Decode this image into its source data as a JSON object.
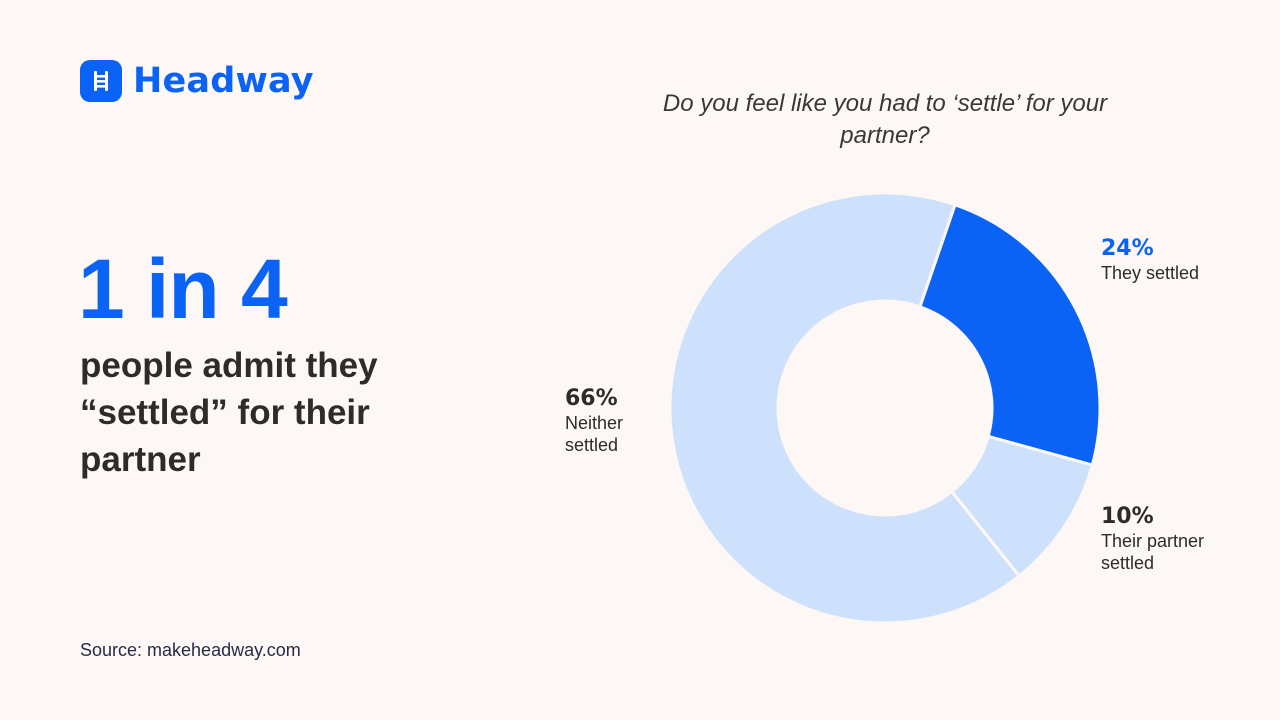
{
  "brand": {
    "name": "Headway",
    "icon": "ladder-icon",
    "color": "#0b63f6"
  },
  "headline": {
    "stat": "1 in 4",
    "text": "people admit they “settled” for their partner"
  },
  "source": "Source: makeheadway.com",
  "chart_data": {
    "type": "pie",
    "variant": "donut",
    "title": "Do you feel like you had to ‘settle’ for your partner?",
    "categories": [
      "They settled",
      "Their partner settled",
      "Neither settled"
    ],
    "values": [
      24,
      10,
      66
    ],
    "unit": "%",
    "labels": [
      "24%",
      "10%",
      "66%"
    ],
    "colors": [
      "#0b63f6",
      "#cde0fc",
      "#cde0fc"
    ],
    "start_angle_deg": 19,
    "legend": "inline labels beside segments"
  },
  "labels": {
    "they": {
      "pct": "24%",
      "desc": "They settled",
      "color": "#0b63f6"
    },
    "partner": {
      "pct": "10%",
      "desc": "Their partner settled",
      "color": "#2e2b2a"
    },
    "neither": {
      "pct": "66%",
      "desc": "Neither settled",
      "color": "#2e2b2a"
    }
  }
}
